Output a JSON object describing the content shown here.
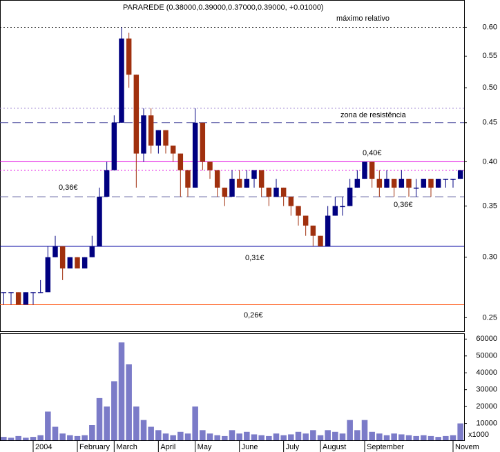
{
  "chart_data": [
    {
      "type": "candlestick",
      "title": "PARAREDE (0.38000,0.39000,0.37000,0.39000, +0.01000)",
      "log_scale": true,
      "ylim": [
        0.24,
        0.65
      ],
      "yticks": [
        {
          "value": 0.25,
          "label": "0.25"
        },
        {
          "value": 0.3,
          "label": "0.30"
        },
        {
          "value": 0.35,
          "label": "0.35"
        },
        {
          "value": 0.4,
          "label": "0.40"
        },
        {
          "value": 0.45,
          "label": "0.45"
        },
        {
          "value": 0.5,
          "label": "0.50"
        },
        {
          "value": 0.55,
          "label": "0.55"
        },
        {
          "value": 0.6,
          "label": "0.60"
        }
      ],
      "up_color": "#000080",
      "down_color": "#a0300e",
      "open": [
        0.27,
        0.27,
        0.27,
        0.26,
        0.27,
        0.27,
        0.27,
        0.3,
        0.31,
        0.29,
        0.3,
        0.29,
        0.3,
        0.31,
        0.36,
        0.39,
        0.45,
        0.58,
        0.52,
        0.41,
        0.46,
        0.42,
        0.44,
        0.42,
        0.41,
        0.39,
        0.37,
        0.45,
        0.4,
        0.39,
        0.37,
        0.36,
        0.38,
        0.37,
        0.38,
        0.39,
        0.37,
        0.36,
        0.37,
        0.36,
        0.35,
        0.34,
        0.33,
        0.32,
        0.31,
        0.34,
        0.35,
        0.35,
        0.37,
        0.38,
        0.4,
        0.38,
        0.37,
        0.38,
        0.37,
        0.38,
        0.37,
        0.37,
        0.38,
        0.37,
        0.38,
        0.38,
        0.38
      ],
      "high": [
        0.27,
        0.27,
        0.27,
        0.27,
        0.27,
        0.28,
        0.31,
        0.32,
        0.31,
        0.3,
        0.3,
        0.3,
        0.32,
        0.37,
        0.4,
        0.46,
        0.6,
        0.59,
        0.52,
        0.47,
        0.47,
        0.44,
        0.44,
        0.42,
        0.41,
        0.39,
        0.47,
        0.45,
        0.4,
        0.39,
        0.37,
        0.39,
        0.39,
        0.39,
        0.39,
        0.39,
        0.37,
        0.38,
        0.37,
        0.36,
        0.35,
        0.34,
        0.33,
        0.32,
        0.35,
        0.36,
        0.36,
        0.38,
        0.39,
        0.4,
        0.4,
        0.39,
        0.39,
        0.38,
        0.39,
        0.38,
        0.38,
        0.38,
        0.38,
        0.38,
        0.38,
        0.38,
        0.39
      ],
      "low": [
        0.26,
        0.26,
        0.26,
        0.26,
        0.26,
        0.27,
        0.27,
        0.3,
        0.28,
        0.29,
        0.29,
        0.29,
        0.3,
        0.31,
        0.36,
        0.39,
        0.45,
        0.5,
        0.37,
        0.4,
        0.41,
        0.41,
        0.41,
        0.4,
        0.36,
        0.36,
        0.37,
        0.39,
        0.38,
        0.36,
        0.35,
        0.36,
        0.37,
        0.37,
        0.37,
        0.36,
        0.35,
        0.36,
        0.35,
        0.34,
        0.33,
        0.32,
        0.31,
        0.31,
        0.31,
        0.34,
        0.34,
        0.35,
        0.37,
        0.38,
        0.37,
        0.36,
        0.37,
        0.36,
        0.37,
        0.36,
        0.36,
        0.37,
        0.36,
        0.37,
        0.37,
        0.37,
        0.38
      ],
      "close": [
        0.27,
        0.27,
        0.26,
        0.27,
        0.27,
        0.27,
        0.3,
        0.31,
        0.29,
        0.3,
        0.29,
        0.3,
        0.31,
        0.36,
        0.39,
        0.45,
        0.58,
        0.52,
        0.41,
        0.46,
        0.42,
        0.44,
        0.42,
        0.41,
        0.39,
        0.37,
        0.45,
        0.4,
        0.39,
        0.37,
        0.36,
        0.38,
        0.37,
        0.38,
        0.39,
        0.37,
        0.36,
        0.37,
        0.36,
        0.35,
        0.34,
        0.33,
        0.32,
        0.31,
        0.34,
        0.35,
        0.35,
        0.37,
        0.38,
        0.4,
        0.38,
        0.37,
        0.38,
        0.37,
        0.38,
        0.37,
        0.37,
        0.38,
        0.37,
        0.38,
        0.38,
        0.38,
        0.39
      ],
      "levels": [
        {
          "value": 0.6,
          "color": "#000000",
          "dash": "2,3",
          "labels": [
            "máximo relativo"
          ],
          "label_color": "#2020c0"
        },
        {
          "value": 0.47,
          "color": "#9a7fd0",
          "dash": "2,3"
        },
        {
          "value": 0.45,
          "color": "#5050a0",
          "dash": "12,6",
          "labels": [
            "zona de resistência"
          ],
          "label_color": "#888888"
        },
        {
          "value": 0.4,
          "color": "#e000e0",
          "labels": [
            "0,40€"
          ],
          "label_color": "#d000d0"
        },
        {
          "value": 0.39,
          "color": "#e000e0",
          "dash": "2,3"
        },
        {
          "value": 0.36,
          "color": "#6060a0",
          "dash": "12,6",
          "labels": [
            "0,36€",
            "0,36€"
          ],
          "label_color": "#888888"
        },
        {
          "value": 0.31,
          "color": "#0000a0",
          "labels": [
            "0,31€"
          ],
          "label_color": "#0000c0"
        },
        {
          "value": 0.26,
          "color": "#ff6020",
          "labels": [
            "0,26€"
          ],
          "label_color": "#d02020"
        }
      ]
    },
    {
      "type": "bar",
      "color": "#7b7bc8",
      "unit_label": "x1000",
      "ylim": [
        0,
        63000
      ],
      "yticks": [
        10000,
        20000,
        30000,
        40000,
        50000,
        60000
      ],
      "categories": [
        null,
        null,
        null,
        null,
        "2004",
        null,
        null,
        null,
        null,
        null,
        "February",
        null,
        null,
        null,
        null,
        "March",
        null,
        null,
        null,
        null,
        null,
        "April",
        null,
        null,
        null,
        null,
        "May",
        null,
        null,
        null,
        null,
        null,
        "June",
        null,
        null,
        null,
        null,
        null,
        "July",
        null,
        null,
        null,
        null,
        "August",
        null,
        null,
        null,
        null,
        null,
        "September",
        null,
        null,
        null,
        null,
        null,
        null,
        null,
        null,
        null,
        null,
        null,
        "Novem",
        null
      ],
      "values": [
        2000,
        1500,
        2500,
        1500,
        2000,
        3000,
        17000,
        8000,
        4000,
        3000,
        2500,
        3000,
        9000,
        25000,
        20000,
        35000,
        58000,
        45000,
        20000,
        12000,
        8000,
        6000,
        4000,
        3000,
        5000,
        4000,
        20000,
        6000,
        4000,
        3000,
        2500,
        6000,
        4000,
        5000,
        3500,
        3000,
        2500,
        4000,
        3000,
        3500,
        5000,
        4000,
        6000,
        3000,
        6000,
        5000,
        4000,
        12000,
        6000,
        12000,
        5000,
        4000,
        3000,
        4000,
        3500,
        3000,
        2500,
        3000,
        2500,
        2000,
        2500,
        3000,
        10000
      ]
    }
  ]
}
